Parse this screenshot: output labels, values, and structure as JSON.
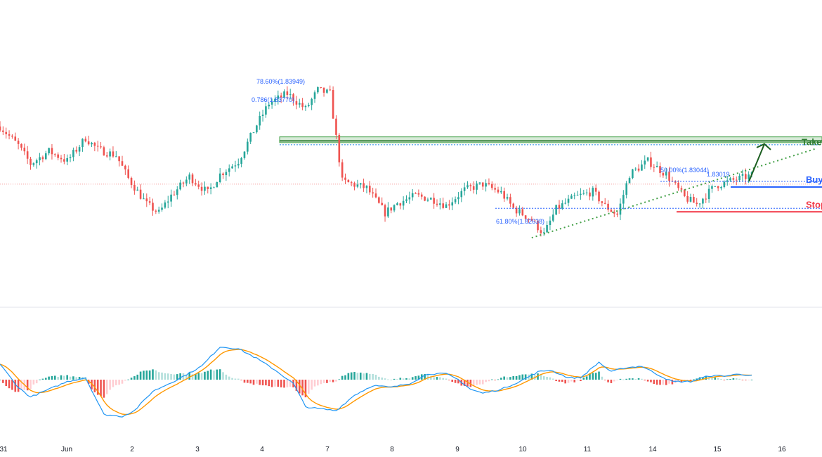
{
  "chart_data": [
    {
      "type": "candlestick",
      "title": "",
      "x_tick_labels": [
        "31",
        "Jun",
        "2",
        "3",
        "4",
        "7",
        "8",
        "9",
        "10",
        "11",
        "14",
        "15",
        "16"
      ],
      "ylim": [
        1.81,
        1.86
      ],
      "grid": false,
      "colors": {
        "up": "#26a69a",
        "down": "#ef5350",
        "zone": "#43a047",
        "buy": "#2962ff",
        "stop": "#f23645",
        "fib": "#2962ff"
      },
      "ohlc_anchors": [
        [
          0,
          1.8405
        ],
        [
          6,
          1.8372
        ],
        [
          10,
          1.834
        ],
        [
          16,
          1.8362
        ],
        [
          22,
          1.8345
        ],
        [
          28,
          1.8385
        ],
        [
          32,
          1.8365
        ],
        [
          38,
          1.8355
        ],
        [
          42,
          1.8315
        ],
        [
          48,
          1.827
        ],
        [
          52,
          1.8255
        ],
        [
          56,
          1.8285
        ],
        [
          62,
          1.8318
        ],
        [
          68,
          1.829
        ],
        [
          72,
          1.8322
        ],
        [
          78,
          1.8345
        ],
        [
          84,
          1.8408
        ],
        [
          88,
          1.8445
        ],
        [
          94,
          1.8462
        ],
        [
          100,
          1.8435
        ],
        [
          104,
          1.8468
        ],
        [
          108,
          1.8462
        ],
        [
          112,
          1.831
        ],
        [
          120,
          1.8298
        ],
        [
          126,
          1.8255
        ],
        [
          130,
          1.8272
        ],
        [
          136,
          1.8285
        ],
        [
          142,
          1.8278
        ],
        [
          146,
          1.8268
        ],
        [
          152,
          1.8295
        ],
        [
          158,
          1.8305
        ],
        [
          164,
          1.829
        ],
        [
          168,
          1.8263
        ],
        [
          174,
          1.8243
        ],
        [
          178,
          1.8218
        ],
        [
          182,
          1.8262
        ],
        [
          188,
          1.8282
        ],
        [
          194,
          1.8292
        ],
        [
          198,
          1.8267
        ],
        [
          202,
          1.8252
        ],
        [
          206,
          1.8322
        ],
        [
          212,
          1.8345
        ],
        [
          218,
          1.8322
        ],
        [
          224,
          1.8282
        ],
        [
          228,
          1.827
        ],
        [
          234,
          1.8302
        ],
        [
          240,
          1.8312
        ],
        [
          246,
          1.832
        ]
      ],
      "annotations": {
        "take_profit": {
          "label": "Take Profit",
          "top": 1.8387,
          "bottom": 1.8377,
          "mid": 1.838
        },
        "fib_786": {
          "label": "78.60%(1.83949)",
          "value": 1.83949
        },
        "fib_0786": {
          "label": "0.786(1.83770)",
          "value": 1.8377
        },
        "buy": {
          "label": "Buy",
          "value": 1.83
        },
        "fib_50": {
          "label": "50.00%(1.83044)",
          "value": 1.83044
        },
        "fib_50_b": {
          "label": "1.83019",
          "value": 1.83019
        },
        "fib_618": {
          "label": "61.80%(1.82638)",
          "value": 1.82638
        },
        "stop_loss": {
          "label": "Stop Loss",
          "value": 1.8257
        },
        "horizontal_level": 1.8305
      },
      "trendline": {
        "from": [
          174,
          1.8212
        ],
        "to": [
          250,
          1.8345
        ]
      },
      "arrow": {
        "from": [
          240,
          1.8303
        ],
        "to": [
          250,
          1.838
        ]
      }
    },
    {
      "type": "macd",
      "series": [
        {
          "name": "",
          "color": "#2196f3"
        },
        {
          "name": "",
          "color": "#ff9800"
        }
      ],
      "histogram_colors": {
        "pos_up": "#26a69a",
        "pos_down": "#b2dfdb",
        "neg_down": "#ef5350",
        "neg_up": "#ffcdd2"
      },
      "macd_anchors": [
        [
          0,
          0.4
        ],
        [
          6,
          -0.2
        ],
        [
          10,
          -0.45
        ],
        [
          16,
          -0.25
        ],
        [
          22,
          -0.05
        ],
        [
          28,
          0.05
        ],
        [
          34,
          -0.9
        ],
        [
          40,
          -0.95
        ],
        [
          44,
          -0.8
        ],
        [
          50,
          -0.3
        ],
        [
          58,
          0.0
        ],
        [
          66,
          0.35
        ],
        [
          72,
          0.85
        ],
        [
          78,
          0.8
        ],
        [
          84,
          0.55
        ],
        [
          90,
          0.25
        ],
        [
          96,
          -0.1
        ],
        [
          100,
          -0.7
        ],
        [
          104,
          -0.75
        ],
        [
          110,
          -0.8
        ],
        [
          116,
          -0.4
        ],
        [
          122,
          -0.15
        ],
        [
          128,
          -0.2
        ],
        [
          134,
          -0.1
        ],
        [
          140,
          0.15
        ],
        [
          146,
          0.15
        ],
        [
          150,
          0.0
        ],
        [
          154,
          -0.25
        ],
        [
          158,
          -0.35
        ],
        [
          164,
          -0.25
        ],
        [
          170,
          -0.05
        ],
        [
          176,
          0.2
        ],
        [
          180,
          0.25
        ],
        [
          186,
          0.05
        ],
        [
          190,
          0.05
        ],
        [
          196,
          0.45
        ],
        [
          200,
          0.2
        ],
        [
          204,
          0.3
        ],
        [
          210,
          0.35
        ],
        [
          216,
          0.1
        ],
        [
          220,
          -0.05
        ],
        [
          226,
          -0.05
        ],
        [
          232,
          0.1
        ],
        [
          238,
          0.1
        ],
        [
          242,
          0.15
        ],
        [
          246,
          0.1
        ]
      ]
    }
  ]
}
